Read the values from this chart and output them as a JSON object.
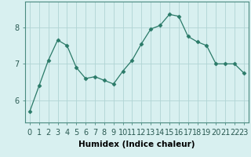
{
  "title": "",
  "xlabel": "Humidex (Indice chaleur)",
  "ylabel": "",
  "x": [
    0,
    1,
    2,
    3,
    4,
    5,
    6,
    7,
    8,
    9,
    10,
    11,
    12,
    13,
    14,
    15,
    16,
    17,
    18,
    19,
    20,
    21,
    22,
    23
  ],
  "y": [
    5.7,
    6.4,
    7.1,
    7.65,
    7.5,
    6.9,
    6.6,
    6.65,
    6.55,
    6.45,
    6.8,
    7.1,
    7.55,
    7.95,
    8.05,
    8.35,
    8.3,
    7.75,
    7.6,
    7.5,
    7.0,
    7.0,
    7.0,
    6.75
  ],
  "line_color": "#2a7a68",
  "marker": "D",
  "marker_size": 2.5,
  "bg_color": "#d8f0f0",
  "grid_color": "#b0d4d4",
  "ylim": [
    5.4,
    8.7
  ],
  "yticks": [
    6,
    7,
    8
  ],
  "xlabel_fontsize": 7.5,
  "tick_fontsize": 7
}
